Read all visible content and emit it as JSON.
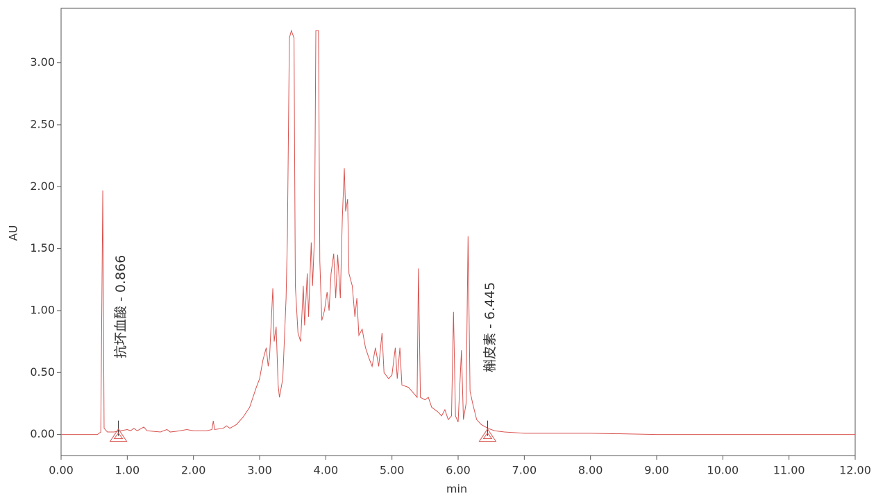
{
  "chart_data": {
    "type": "line",
    "x_label": "min",
    "y_label": "AU",
    "color": "#d9534f",
    "grid": false,
    "xlim": [
      0,
      12
    ],
    "ylim": [
      -0.17,
      3.44
    ],
    "xticks": [
      {
        "value": 0,
        "label": "0.00"
      },
      {
        "value": 1,
        "label": "1.00"
      },
      {
        "value": 2,
        "label": "2.00"
      },
      {
        "value": 3,
        "label": "3.00"
      },
      {
        "value": 4,
        "label": "4.00"
      },
      {
        "value": 5,
        "label": "5.00"
      },
      {
        "value": 6,
        "label": "6.00"
      },
      {
        "value": 7,
        "label": "7.00"
      },
      {
        "value": 8,
        "label": "8.00"
      },
      {
        "value": 9,
        "label": "9.00"
      },
      {
        "value": 10,
        "label": "10.00"
      },
      {
        "value": 11,
        "label": "11.00"
      },
      {
        "value": 12,
        "label": "12.00"
      }
    ],
    "yticks": [
      {
        "value": 0,
        "label": "0.00"
      },
      {
        "value": 0.5,
        "label": "0.50"
      },
      {
        "value": 1,
        "label": "1.00"
      },
      {
        "value": 1.5,
        "label": "1.50"
      },
      {
        "value": 2,
        "label": "2.00"
      },
      {
        "value": 2.5,
        "label": "2.50"
      },
      {
        "value": 3,
        "label": "3.00"
      }
    ],
    "x": [
      0,
      0.55,
      0.6,
      0.63,
      0.65,
      0.7,
      0.8,
      0.9,
      1.0,
      1.05,
      1.1,
      1.15,
      1.25,
      1.3,
      1.5,
      1.6,
      1.65,
      1.8,
      1.9,
      2.0,
      2.2,
      2.28,
      2.3,
      2.32,
      2.45,
      2.5,
      2.55,
      2.65,
      2.75,
      2.85,
      2.95,
      3.0,
      3.05,
      3.1,
      3.13,
      3.15,
      3.2,
      3.22,
      3.25,
      3.28,
      3.3,
      3.35,
      3.4,
      3.42,
      3.45,
      3.48,
      3.52,
      3.54,
      3.58,
      3.62,
      3.66,
      3.68,
      3.72,
      3.74,
      3.78,
      3.8,
      3.83,
      3.85,
      3.89,
      3.91,
      3.94,
      3.98,
      4.02,
      4.05,
      4.08,
      4.12,
      4.15,
      4.18,
      4.22,
      4.25,
      4.28,
      4.3,
      4.33,
      4.35,
      4.4,
      4.44,
      4.47,
      4.5,
      4.55,
      4.6,
      4.65,
      4.7,
      4.75,
      4.8,
      4.85,
      4.88,
      4.95,
      5.0,
      5.05,
      5.08,
      5.12,
      5.15,
      5.25,
      5.3,
      5.38,
      5.4,
      5.43,
      5.5,
      5.55,
      5.6,
      5.7,
      5.75,
      5.8,
      5.85,
      5.9,
      5.93,
      5.96,
      6.0,
      6.05,
      6.08,
      6.12,
      6.15,
      6.18,
      6.22,
      6.28,
      6.35,
      6.45,
      6.55,
      6.7,
      7.0,
      8.0,
      9.0,
      12.0
    ],
    "values": [
      0,
      0,
      0.02,
      1.97,
      0.05,
      0.02,
      0.02,
      0.03,
      0.04,
      0.03,
      0.05,
      0.03,
      0.06,
      0.03,
      0.02,
      0.04,
      0.02,
      0.03,
      0.04,
      0.03,
      0.03,
      0.04,
      0.11,
      0.04,
      0.05,
      0.07,
      0.05,
      0.08,
      0.14,
      0.22,
      0.38,
      0.45,
      0.6,
      0.7,
      0.55,
      0.62,
      1.18,
      0.75,
      0.87,
      0.4,
      0.3,
      0.45,
      1.1,
      1.6,
      3.2,
      3.26,
      3.2,
      1.2,
      0.82,
      0.75,
      1.2,
      0.88,
      1.3,
      0.95,
      1.55,
      1.2,
      1.6,
      3.26,
      3.26,
      1.4,
      0.92,
      1.0,
      1.15,
      1.0,
      1.3,
      1.46,
      1.1,
      1.45,
      1.1,
      1.75,
      2.15,
      1.8,
      1.9,
      1.3,
      1.2,
      0.95,
      1.1,
      0.8,
      0.85,
      0.7,
      0.62,
      0.55,
      0.7,
      0.55,
      0.82,
      0.5,
      0.45,
      0.48,
      0.7,
      0.45,
      0.7,
      0.4,
      0.38,
      0.35,
      0.3,
      1.34,
      0.3,
      0.28,
      0.3,
      0.22,
      0.18,
      0.15,
      0.2,
      0.12,
      0.15,
      0.99,
      0.15,
      0.1,
      0.68,
      0.12,
      0.25,
      1.6,
      0.35,
      0.25,
      0.12,
      0.08,
      0.05,
      0.03,
      0.02,
      0.01,
      0.01,
      0,
      0
    ],
    "annotations": [
      {
        "label": "抗坏血酸 - 0.866",
        "x": 0.866
      },
      {
        "label": "槲皮素 - 6.445",
        "x": 6.445
      }
    ]
  }
}
